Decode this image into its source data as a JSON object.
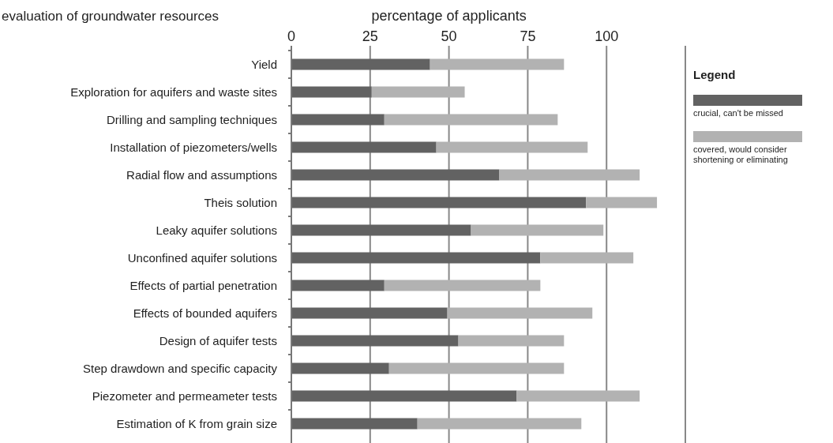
{
  "chart_data": {
    "type": "bar",
    "orientation": "horizontal",
    "stacked": true,
    "title": "evaluation of groundwater resources",
    "xlabel": "percentage of applicants",
    "legend_title": "Legend",
    "legend": "right",
    "grid": "x",
    "categories": [
      "Yield",
      "Exploration for aquifers and waste sites",
      "Drilling and sampling techniques",
      "Installation of piezometers/wells",
      "Radial flow and assumptions",
      "Theis solution",
      "Leaky aquifer solutions",
      "Unconfined aquifer solutions",
      "Effects of partial penetration",
      "Effects of bounded aquifers",
      "Design of aquifer tests",
      "Step drawdown and specific capacity",
      "Piezometer and permeameter tests",
      "Estimation of K from grain size"
    ],
    "xlim": [
      0,
      125
    ],
    "xticks": [
      0,
      25,
      50,
      75,
      100,
      {
        "value": 125,
        "label": null
      }
    ],
    "series": [
      {
        "name": "crucial, can't be missed",
        "color": "#626262",
        "values": [
          44,
          25.5,
          29.5,
          46,
          66,
          93.5,
          57,
          79,
          29.5,
          49.5,
          53,
          31,
          71.5,
          40
        ]
      },
      {
        "name": "covered, would consider shortening or eliminating",
        "color": "#b2b2b2",
        "values": [
          42.5,
          29.5,
          55,
          48,
          44.5,
          22.5,
          42,
          29.5,
          49.5,
          46,
          33.5,
          55.5,
          39,
          52
        ]
      }
    ]
  }
}
